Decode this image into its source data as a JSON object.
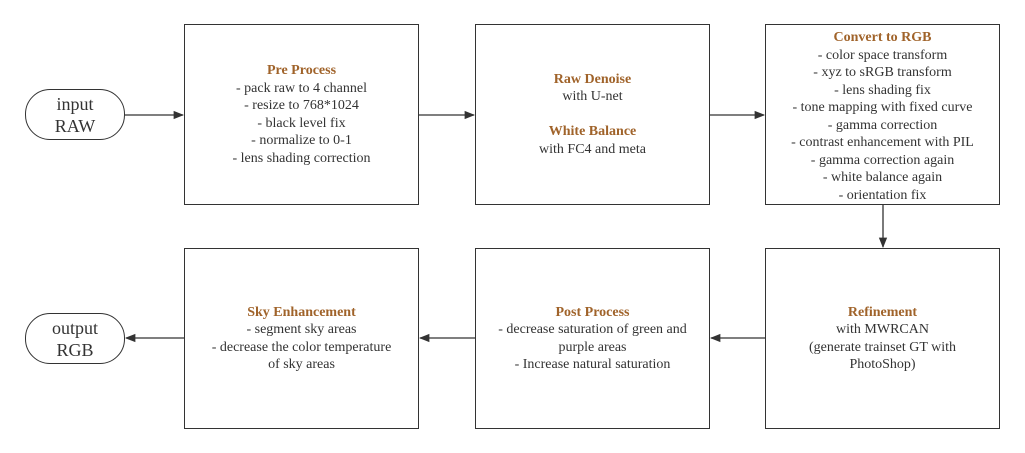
{
  "input_terminal": {
    "line1": "input",
    "line2": "RAW"
  },
  "output_terminal": {
    "line1": "output",
    "line2": "RGB"
  },
  "pre_process": {
    "title": "Pre Process",
    "lines": [
      "- pack raw to 4 channel",
      "- resize to 768*1024",
      "- black level fix",
      "- normalize to 0-1",
      "- lens shading correction"
    ]
  },
  "denoise": {
    "title": "Raw Denoise",
    "subtitle": "with U-net",
    "wb_title": "White Balance",
    "wb_subtitle": "with FC4 and meta"
  },
  "convert_rgb": {
    "title": "Convert to RGB",
    "lines": [
      "- color space transform",
      "- xyz to sRGB transform",
      "- lens shading fix",
      "- tone mapping with fixed curve",
      "- gamma correction",
      "- contrast enhancement with PIL",
      "- gamma correction again",
      "- white balance again",
      "- orientation fix"
    ]
  },
  "refinement": {
    "title": "Refinement",
    "lines": [
      "with MWRCAN",
      "(generate trainset GT with",
      "PhotoShop)"
    ]
  },
  "post_process": {
    "title": "Post Process",
    "lines": [
      "- decrease saturation of green and",
      "purple areas",
      "- Increase natural saturation"
    ]
  },
  "sky": {
    "title": "Sky Enhancement",
    "lines": [
      "- segment sky areas",
      "- decrease the color temperature",
      "of sky areas"
    ]
  },
  "colors": {
    "title_accent": "#a0632a",
    "stroke": "#333333"
  }
}
